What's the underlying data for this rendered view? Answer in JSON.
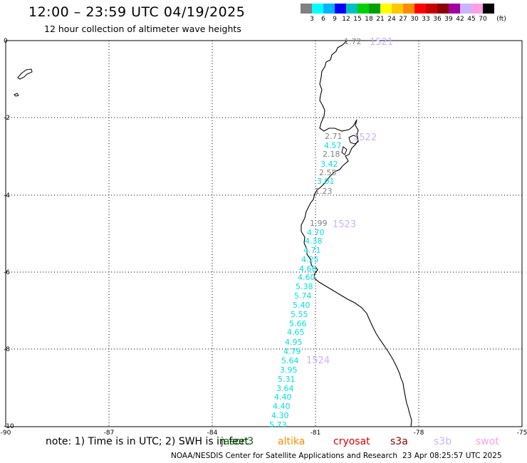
{
  "header": {
    "title": "12:00 – 23:59 UTC 04/19/2025",
    "subtitle": "12 hour collection of altimeter wave heights"
  },
  "colorbar": {
    "colors": [
      "#808080",
      "#00ffff",
      "#00b4ff",
      "#0000ff",
      "#00c0c0",
      "#00d000",
      "#00a000",
      "#ffff00",
      "#ffc800",
      "#ff8c00",
      "#ff0000",
      "#c80000",
      "#8c0000",
      "#a000a0",
      "#c8b4ff",
      "#ffa0e6",
      "#000000"
    ],
    "labels": [
      "3",
      "6",
      "9",
      "12",
      "15",
      "18",
      "21",
      "24",
      "27",
      "30",
      "33",
      "36",
      "39",
      "42",
      "45",
      "70"
    ],
    "unit": "(ft)"
  },
  "map": {
    "lon_ticks": [
      "-90",
      "-87",
      "-84",
      "-81",
      "-78",
      "-75"
    ],
    "lat_ticks": [
      "0",
      "-2",
      "-4",
      "-6",
      "-8",
      "-10"
    ]
  },
  "observations": [
    {
      "value": "1.72",
      "color": "#808080"
    },
    {
      "value": "2.71",
      "color": "#808080"
    },
    {
      "value": "4.57",
      "color": "#00e0e0"
    },
    {
      "value": "2.18",
      "color": "#808080"
    },
    {
      "value": "3.42",
      "color": "#00e0e0"
    },
    {
      "value": "2.58",
      "color": "#808080"
    },
    {
      "value": "3.01",
      "color": "#00e0e0"
    },
    {
      "value": "1.23",
      "color": "#808080"
    },
    {
      "value": "1.99",
      "color": "#808080"
    },
    {
      "value": "4.70",
      "color": "#00e0e0"
    },
    {
      "value": "4.38",
      "color": "#00e0e0"
    },
    {
      "value": "4.71",
      "color": "#00e0e0"
    },
    {
      "value": "4.25",
      "color": "#00e0e0"
    },
    {
      "value": "4.68",
      "color": "#00e0e0"
    },
    {
      "value": "4.60",
      "color": "#00e0e0"
    },
    {
      "value": "5.38",
      "color": "#00e0e0"
    },
    {
      "value": "5.74",
      "color": "#00e0e0"
    },
    {
      "value": "5.40",
      "color": "#00e0e0"
    },
    {
      "value": "5.55",
      "color": "#00e0e0"
    },
    {
      "value": "5.66",
      "color": "#00e0e0"
    },
    {
      "value": "4.65",
      "color": "#00e0e0"
    },
    {
      "value": "4.95",
      "color": "#00e0e0"
    },
    {
      "value": "4.79",
      "color": "#00e0e0"
    },
    {
      "value": "5.64",
      "color": "#00e0e0"
    },
    {
      "value": "3.95",
      "color": "#00e0e0"
    },
    {
      "value": "5.31",
      "color": "#00e0e0"
    },
    {
      "value": "3.64",
      "color": "#00e0e0"
    },
    {
      "value": "4.40",
      "color": "#00e0e0"
    },
    {
      "value": "4.40",
      "color": "#00e0e0"
    },
    {
      "value": "4.30",
      "color": "#00e0e0"
    },
    {
      "value": "5.73",
      "color": "#00e0e0"
    }
  ],
  "passes": [
    {
      "label": "1521",
      "color": "#c8b4ff"
    },
    {
      "label": "1522",
      "color": "#c8b4ff"
    },
    {
      "label": "1523",
      "color": "#c8b4ff"
    },
    {
      "label": "1524",
      "color": "#c8b4ff"
    }
  ],
  "footer": {
    "note": "note: 1) Time is in UTC; 2) SWH is in feet",
    "legend": [
      {
        "label": "jason3",
        "color": "#006400"
      },
      {
        "label": "altika",
        "color": "#ff8c00"
      },
      {
        "label": "cryosat",
        "color": "#e00000"
      },
      {
        "label": "s3a",
        "color": "#8b0000"
      },
      {
        "label": "s3b",
        "color": "#c8b4ff"
      },
      {
        "label": "swot",
        "color": "#ffa0e6"
      }
    ],
    "credit": "NOAA/NESDIS Center for Satellite Applications and Research",
    "timestamp": "23 Apr 08:25:57 UTC 2025"
  }
}
